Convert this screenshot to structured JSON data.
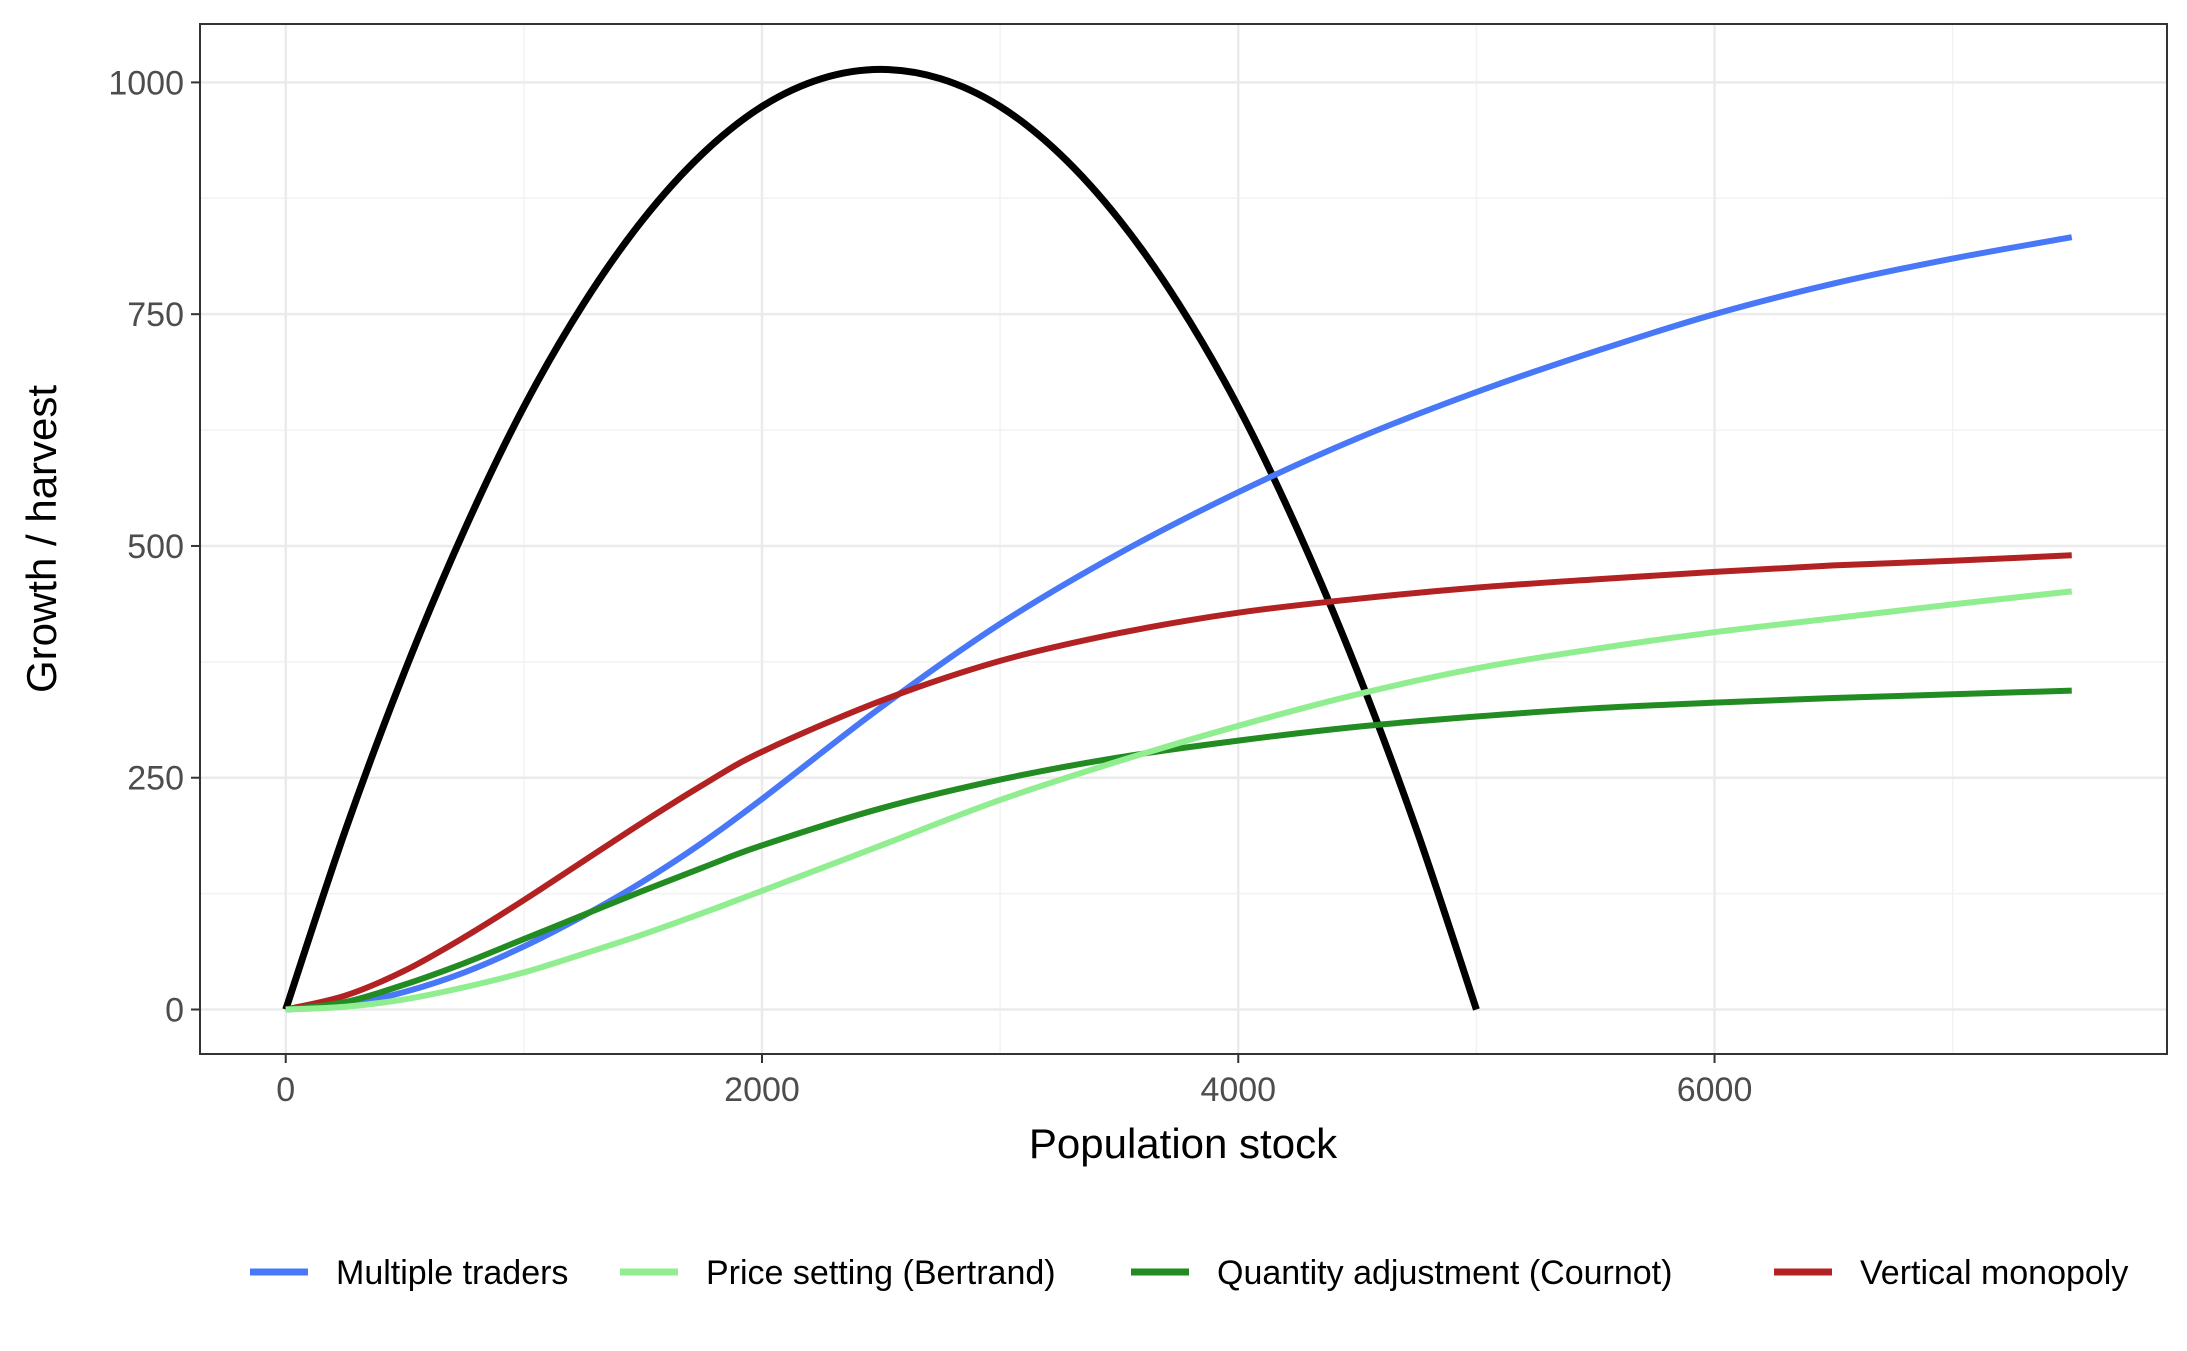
{
  "chart_data": {
    "type": "line",
    "title": "",
    "xlabel": "Population stock",
    "ylabel": "Growth / harvest",
    "xlim": [
      -360,
      7900
    ],
    "ylim": [
      -48,
      1063
    ],
    "x_ticks": [
      0,
      2000,
      4000,
      6000
    ],
    "x_tick_labels": [
      "0",
      "2000",
      "4000",
      "6000"
    ],
    "y_ticks": [
      0,
      250,
      500,
      750,
      1000
    ],
    "y_tick_labels": [
      "0",
      "250",
      "500",
      "750",
      "1000"
    ],
    "grid": true,
    "legend_position": "bottom",
    "growth_curve": {
      "color": "#000000",
      "x": [
        0,
        250,
        500,
        750,
        1000,
        1250,
        1500,
        1750,
        2000,
        2250,
        2500,
        2750,
        3000,
        3250,
        3500,
        3750,
        4000,
        4250,
        4500,
        4750,
        5000
      ],
      "y": [
        0,
        193,
        365,
        517,
        650,
        761,
        852,
        923,
        974,
        1004,
        1014,
        1004,
        974,
        923,
        852,
        761,
        650,
        517,
        365,
        193,
        0
      ]
    },
    "series": [
      {
        "name": "Multiple traders",
        "color": "#4878f7",
        "x": [
          0,
          250,
          500,
          750,
          1000,
          1250,
          1500,
          1750,
          2000,
          2500,
          3000,
          3500,
          4000,
          4500,
          5000,
          5500,
          6000,
          6500,
          7000,
          7500
        ],
        "y": [
          0,
          5,
          19,
          40,
          68,
          101,
          138,
          180,
          227,
          326,
          416,
          492,
          558,
          616,
          666,
          710,
          750,
          783,
          810,
          833
        ]
      },
      {
        "name": "Price setting (Bertrand)",
        "color": "#90ee90",
        "x": [
          0,
          250,
          500,
          750,
          1000,
          1250,
          1500,
          1750,
          2000,
          2500,
          3000,
          3500,
          4000,
          4500,
          5000,
          5500,
          6000,
          6500,
          7000,
          7500
        ],
        "y": [
          0,
          3,
          11,
          24,
          40,
          60,
          81,
          104,
          128,
          177,
          226,
          268,
          306,
          340,
          368,
          389,
          407,
          422,
          437,
          451
        ]
      },
      {
        "name": "Quantity adjustment (Cournot)",
        "color": "#228b22",
        "x": [
          0,
          250,
          500,
          750,
          1000,
          1250,
          1500,
          1750,
          2000,
          2500,
          3000,
          3500,
          4000,
          4500,
          5000,
          5500,
          6000,
          6500,
          7000,
          7500
        ],
        "y": [
          0,
          8,
          27,
          50,
          76,
          102,
          128,
          153,
          177,
          217,
          248,
          272,
          290,
          305,
          316,
          325,
          331,
          336,
          340,
          344
        ]
      },
      {
        "name": "Vertical monopoly",
        "color": "#b22222",
        "x": [
          0,
          250,
          500,
          750,
          1000,
          1250,
          1500,
          1750,
          2000,
          2500,
          3000,
          3500,
          4000,
          4500,
          5000,
          5500,
          6000,
          6500,
          7000,
          7500
        ],
        "y": [
          0,
          15,
          42,
          78,
          118,
          160,
          202,
          242,
          278,
          333,
          376,
          406,
          428,
          443,
          455,
          464,
          472,
          479,
          484,
          490
        ]
      }
    ]
  }
}
